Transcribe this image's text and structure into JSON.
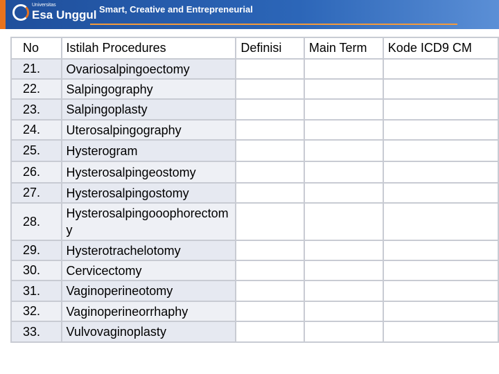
{
  "header": {
    "logo_small": "Universitas",
    "logo": "Esa Unggul",
    "tagline": "Smart, Creative and Entrepreneurial"
  },
  "table": {
    "columns": [
      "No",
      "Istilah Procedures",
      "Definisi",
      "Main Term",
      "Kode ICD9 CM"
    ],
    "rows": [
      [
        "21.",
        "Ovariosalpingoectomy"
      ],
      [
        "22.",
        "Salpingography"
      ],
      [
        "23.",
        "Salpingoplasty"
      ],
      [
        "24.",
        "Uterosalpingography"
      ],
      [
        "25.",
        "Hysterogram"
      ],
      [
        "26.",
        "Hysterosalpingeostomy"
      ],
      [
        "27.",
        "Hysterosalpingostomy"
      ],
      [
        "28.",
        "Hysterosalpingooophorectomy"
      ],
      [
        "29.",
        "Hysterotrachelotomy"
      ],
      [
        "30.",
        "Cervicectomy"
      ],
      [
        "31.",
        "Vaginoperineotomy"
      ],
      [
        "32.",
        "Vaginoperineorrhaphy"
      ],
      [
        "33.",
        "Vulvovaginoplasty"
      ]
    ]
  }
}
